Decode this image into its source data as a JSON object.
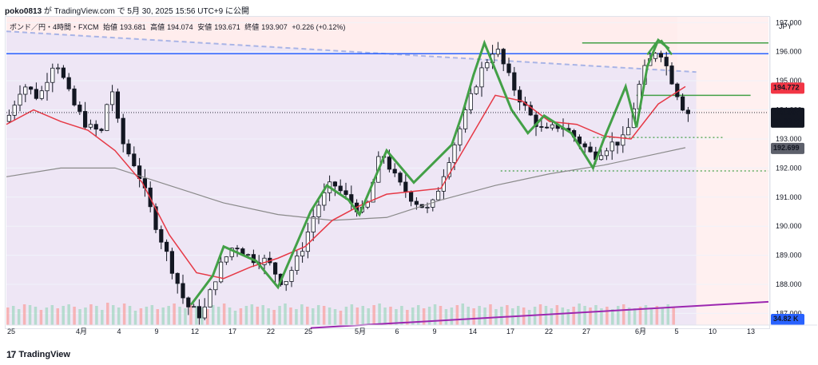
{
  "header": {
    "user": "poko0813",
    "middle": "が TradingView.com で 5月 30, 2025 15:56 UTC+9 に公開"
  },
  "legend": {
    "symbol": "ポンド／円・4時間・FXCM",
    "open_label": "始値",
    "open": "193.681",
    "high_label": "高値",
    "high": "194.074",
    "low_label": "安値",
    "low": "193.671",
    "close_label": "終値",
    "close": "193.907",
    "change": "+0.226 (+0.12%)"
  },
  "currency": "JPY",
  "footer": {
    "brand": "TradingView"
  },
  "colors": {
    "up": "#131722",
    "down": "#131722",
    "ma_fast": "#e63946",
    "ma_slow": "#8a8a8a",
    "zigzag": "#43a047",
    "hline": "#2962ff",
    "trend_upper": "#a9b4e6",
    "trend_lower": "#9c27b0",
    "price_tag": "#f23645",
    "ma_tag": "#5d606b",
    "volume_tag": "#2962ff"
  },
  "chart_data": {
    "type": "candlestick",
    "timeframe": "4h",
    "x_ticks": [
      "25",
      "4月",
      "4",
      "9",
      "12",
      "17",
      "22",
      "25",
      "5月",
      "6",
      "9",
      "14",
      "17",
      "22",
      "27",
      "6月",
      "5",
      "10",
      "13"
    ],
    "y_ticks": [
      "197.000",
      "196.000",
      "195.000",
      "194.000",
      "193.000",
      "192.000",
      "191.000",
      "190.000",
      "189.000",
      "188.000",
      "187.000"
    ],
    "ylim": [
      186.6,
      197.2
    ],
    "price_path": [
      [
        0,
        193.6
      ],
      [
        3,
        194.9
      ],
      [
        6,
        194.4
      ],
      [
        9,
        195.8
      ],
      [
        12,
        194.3
      ],
      [
        15,
        193.4
      ],
      [
        18,
        193.2
      ],
      [
        19,
        195.2
      ],
      [
        21,
        193.0
      ],
      [
        24,
        192.0
      ],
      [
        27,
        190.3
      ],
      [
        30,
        188.8
      ],
      [
        33,
        187.3
      ],
      [
        36,
        186.9
      ],
      [
        39,
        188.5
      ],
      [
        42,
        189.4
      ],
      [
        45,
        188.9
      ],
      [
        48,
        188.8
      ],
      [
        51,
        188.0
      ],
      [
        54,
        189.0
      ],
      [
        57,
        190.6
      ],
      [
        60,
        191.5
      ],
      [
        63,
        190.9
      ],
      [
        66,
        190.4
      ],
      [
        69,
        192.6
      ],
      [
        72,
        191.5
      ],
      [
        75,
        190.9
      ],
      [
        78,
        190.5
      ],
      [
        81,
        192.1
      ],
      [
        84,
        193.6
      ],
      [
        87,
        195.2
      ],
      [
        90,
        196.2
      ],
      [
        93,
        194.9
      ],
      [
        96,
        193.9
      ],
      [
        99,
        193.2
      ],
      [
        102,
        193.5
      ],
      [
        105,
        193.0
      ],
      [
        108,
        192.4
      ],
      [
        111,
        192.8
      ],
      [
        114,
        193.0
      ],
      [
        117,
        195.2
      ],
      [
        120,
        196.2
      ],
      [
        123,
        194.8
      ],
      [
        125,
        193.9
      ]
    ],
    "ma_fast": [
      [
        0,
        193.5
      ],
      [
        5,
        194.0
      ],
      [
        10,
        193.6
      ],
      [
        15,
        193.3
      ],
      [
        20,
        192.6
      ],
      [
        25,
        191.5
      ],
      [
        30,
        189.7
      ],
      [
        35,
        188.4
      ],
      [
        40,
        188.2
      ],
      [
        45,
        188.6
      ],
      [
        50,
        188.9
      ],
      [
        55,
        189.3
      ],
      [
        60,
        190.2
      ],
      [
        65,
        190.7
      ],
      [
        70,
        191.1
      ],
      [
        75,
        191.2
      ],
      [
        80,
        191.3
      ],
      [
        85,
        192.9
      ],
      [
        90,
        194.5
      ],
      [
        95,
        194.3
      ],
      [
        100,
        193.6
      ],
      [
        105,
        193.5
      ],
      [
        110,
        193.1
      ],
      [
        115,
        193.0
      ],
      [
        120,
        194.2
      ],
      [
        125,
        194.8
      ]
    ],
    "ma_slow": [
      [
        0,
        191.7
      ],
      [
        10,
        192.0
      ],
      [
        20,
        192.0
      ],
      [
        30,
        191.4
      ],
      [
        40,
        190.8
      ],
      [
        50,
        190.4
      ],
      [
        60,
        190.2
      ],
      [
        70,
        190.3
      ],
      [
        80,
        190.9
      ],
      [
        90,
        191.4
      ],
      [
        100,
        191.8
      ],
      [
        110,
        192.1
      ],
      [
        120,
        192.5
      ],
      [
        125,
        192.7
      ]
    ],
    "zigzag": [
      [
        34,
        187.3
      ],
      [
        38,
        188.3
      ],
      [
        40,
        189.3
      ],
      [
        46,
        188.8
      ],
      [
        50,
        187.9
      ],
      [
        56,
        190.5
      ],
      [
        59,
        191.4
      ],
      [
        63,
        190.9
      ],
      [
        65,
        190.4
      ],
      [
        70,
        192.6
      ],
      [
        75,
        191.5
      ],
      [
        82,
        192.8
      ],
      [
        84,
        193.9
      ],
      [
        86,
        195.2
      ],
      [
        88,
        196.3
      ],
      [
        93,
        194.0
      ],
      [
        96,
        193.2
      ],
      [
        99,
        193.8
      ],
      [
        104,
        193.2
      ],
      [
        108,
        192.0
      ],
      [
        110,
        193.0
      ],
      [
        114,
        194.8
      ],
      [
        116,
        193.4
      ],
      [
        118,
        195.5
      ],
      [
        120,
        196.4
      ],
      [
        122,
        196.1
      ]
    ],
    "extras": {
      "hline_level": 195.93,
      "resistance_top": 196.3,
      "neckline": 194.5,
      "support_1": 193.05,
      "support_2": 191.9,
      "upper_trend": [
        [
          0,
          196.7
        ],
        [
          127,
          195.3
        ]
      ],
      "lower_trend": [
        [
          56,
          186.5
        ],
        [
          150,
          187.4
        ]
      ]
    },
    "volume": [
      22,
      24,
      20,
      26,
      25,
      23,
      19,
      22,
      25,
      21,
      24,
      26,
      23,
      20,
      22,
      26,
      24,
      19,
      28,
      25,
      22,
      27,
      24,
      18,
      21,
      23,
      25,
      20,
      22,
      24,
      27,
      23,
      21,
      26,
      24,
      22,
      20,
      25,
      23,
      27,
      22,
      18,
      21,
      24,
      26,
      23,
      25,
      21,
      19,
      24,
      27,
      22,
      20,
      26,
      23,
      21,
      25,
      24,
      22,
      20,
      18,
      23,
      26,
      22,
      24,
      21,
      25,
      27,
      22,
      23,
      20,
      24,
      19,
      22,
      25,
      21,
      23,
      26,
      24,
      20,
      22,
      25,
      27,
      23,
      21,
      24,
      22,
      26,
      20,
      23,
      25,
      21,
      24,
      22,
      19,
      23,
      26,
      24,
      21,
      25,
      22,
      20,
      23,
      27,
      24,
      22,
      25,
      21,
      23,
      20,
      24,
      26,
      22,
      21,
      23,
      25,
      20,
      24,
      22,
      26,
      23
    ],
    "labels": {
      "last_price": "193.907",
      "countdown": "02:03:22",
      "ma_fast_value": "194.772",
      "ma_slow_value": "192.699",
      "volume_value": "34.82 K"
    }
  }
}
